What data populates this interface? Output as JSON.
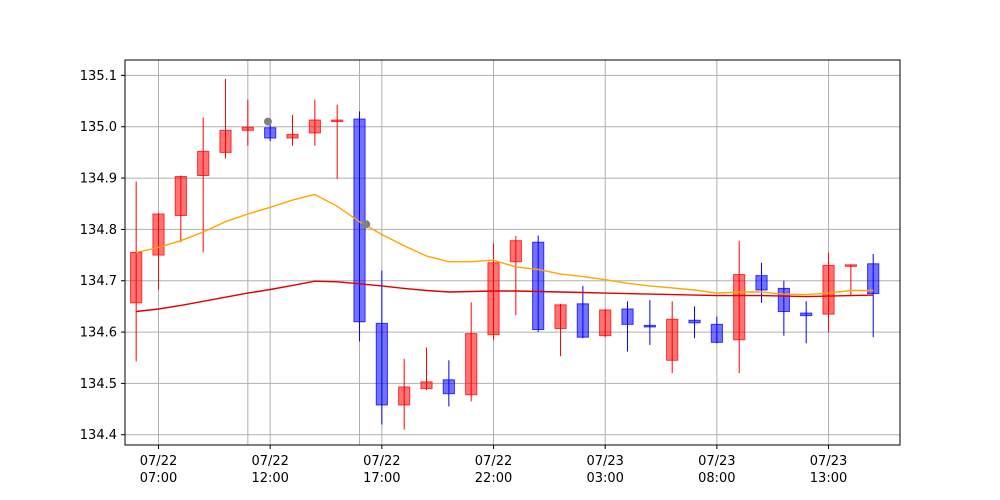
{
  "chart_data": {
    "type": "candlestick",
    "title": "",
    "xlabel": "",
    "ylabel": "",
    "ylim": [
      134.38,
      135.13
    ],
    "grid": true,
    "y_ticks": [
      "134.4",
      "134.5",
      "134.6",
      "134.7",
      "134.8",
      "134.9",
      "135.0",
      "135.1"
    ],
    "x_ticks": [
      {
        "date": "07/22",
        "time": "07:00",
        "idx": 1
      },
      {
        "date": "07/22",
        "time": "12:00",
        "idx": 6
      },
      {
        "date": "07/22",
        "time": "17:00",
        "idx": 11
      },
      {
        "date": "07/22",
        "time": "22:00",
        "idx": 16
      },
      {
        "date": "07/23",
        "time": "03:00",
        "idx": 21
      },
      {
        "date": "07/23",
        "time": "08:00",
        "idx": 26
      },
      {
        "date": "07/23",
        "time": "13:00",
        "idx": 31
      }
    ],
    "extra_vlines_idx": [
      5,
      10
    ],
    "colors": {
      "up": "#ff0000",
      "down": "#0000ff",
      "ma_fast": "#ffa500",
      "ma_slow": "#e00000",
      "marker": "#808080"
    },
    "candles": [
      {
        "o": 134.657,
        "h": 134.893,
        "l": 134.543,
        "c": 134.755
      },
      {
        "o": 134.75,
        "h": 134.832,
        "l": 134.683,
        "c": 134.83
      },
      {
        "o": 134.827,
        "h": 134.905,
        "l": 134.775,
        "c": 134.903
      },
      {
        "o": 134.905,
        "h": 135.018,
        "l": 134.755,
        "c": 134.952
      },
      {
        "o": 134.95,
        "h": 135.093,
        "l": 134.938,
        "c": 134.993
      },
      {
        "o": 134.993,
        "h": 135.053,
        "l": 134.963,
        "c": 134.999
      },
      {
        "o": 134.998,
        "h": 135.013,
        "l": 134.972,
        "c": 134.978
      },
      {
        "o": 134.978,
        "h": 135.023,
        "l": 134.963,
        "c": 134.985
      },
      {
        "o": 134.988,
        "h": 135.053,
        "l": 134.963,
        "c": 135.013
      },
      {
        "o": 135.011,
        "h": 135.043,
        "l": 134.898,
        "c": 135.013
      },
      {
        "o": 135.015,
        "h": 135.03,
        "l": 134.582,
        "c": 134.62
      },
      {
        "o": 134.617,
        "h": 134.72,
        "l": 134.42,
        "c": 134.458
      },
      {
        "o": 134.458,
        "h": 134.548,
        "l": 134.41,
        "c": 134.493
      },
      {
        "o": 134.49,
        "h": 134.57,
        "l": 134.487,
        "c": 134.503
      },
      {
        "o": 134.507,
        "h": 134.545,
        "l": 134.455,
        "c": 134.48
      },
      {
        "o": 134.478,
        "h": 134.658,
        "l": 134.465,
        "c": 134.597
      },
      {
        "o": 134.595,
        "h": 134.773,
        "l": 134.585,
        "c": 134.735
      },
      {
        "o": 134.737,
        "h": 134.787,
        "l": 134.633,
        "c": 134.778
      },
      {
        "o": 134.775,
        "h": 134.788,
        "l": 134.6,
        "c": 134.605
      },
      {
        "o": 134.607,
        "h": 134.655,
        "l": 134.553,
        "c": 134.653
      },
      {
        "o": 134.655,
        "h": 134.69,
        "l": 134.588,
        "c": 134.59
      },
      {
        "o": 134.593,
        "h": 134.645,
        "l": 134.59,
        "c": 134.643
      },
      {
        "o": 134.645,
        "h": 134.66,
        "l": 134.562,
        "c": 134.615
      },
      {
        "o": 134.613,
        "h": 134.662,
        "l": 134.575,
        "c": 134.61
      },
      {
        "o": 134.545,
        "h": 134.66,
        "l": 134.52,
        "c": 134.625
      },
      {
        "o": 134.623,
        "h": 134.65,
        "l": 134.588,
        "c": 134.618
      },
      {
        "o": 134.615,
        "h": 134.63,
        "l": 134.578,
        "c": 134.58
      },
      {
        "o": 134.585,
        "h": 134.778,
        "l": 134.52,
        "c": 134.712
      },
      {
        "o": 134.71,
        "h": 134.735,
        "l": 134.657,
        "c": 134.682
      },
      {
        "o": 134.685,
        "h": 134.7,
        "l": 134.593,
        "c": 134.64
      },
      {
        "o": 134.637,
        "h": 134.66,
        "l": 134.578,
        "c": 134.632
      },
      {
        "o": 134.635,
        "h": 134.755,
        "l": 134.6,
        "c": 134.73
      },
      {
        "o": 134.728,
        "h": 134.732,
        "l": 134.672,
        "c": 134.731
      },
      {
        "o": 134.733,
        "h": 134.752,
        "l": 134.59,
        "c": 134.675
      }
    ],
    "ma_fast": [
      134.755,
      134.765,
      134.778,
      134.795,
      134.815,
      134.83,
      134.843,
      134.857,
      134.868,
      134.845,
      134.815,
      134.79,
      134.768,
      134.748,
      134.737,
      134.737,
      134.74,
      134.727,
      134.722,
      134.713,
      134.708,
      134.702,
      134.695,
      134.69,
      134.686,
      134.682,
      134.676,
      134.678,
      134.678,
      134.674,
      134.673,
      134.676,
      134.681,
      134.681
    ],
    "ma_slow": [
      134.64,
      134.645,
      134.652,
      134.66,
      134.668,
      134.676,
      134.683,
      134.691,
      134.699,
      134.698,
      134.694,
      134.69,
      134.685,
      134.681,
      134.678,
      134.679,
      134.68,
      134.68,
      134.679,
      134.678,
      134.677,
      134.676,
      134.675,
      134.674,
      134.673,
      134.672,
      134.671,
      134.671,
      134.671,
      134.67,
      134.669,
      134.67,
      134.671,
      134.672
    ],
    "markers": [
      {
        "idx": 5.9,
        "y": 135.01
      },
      {
        "idx": 10.3,
        "y": 134.81
      }
    ]
  }
}
